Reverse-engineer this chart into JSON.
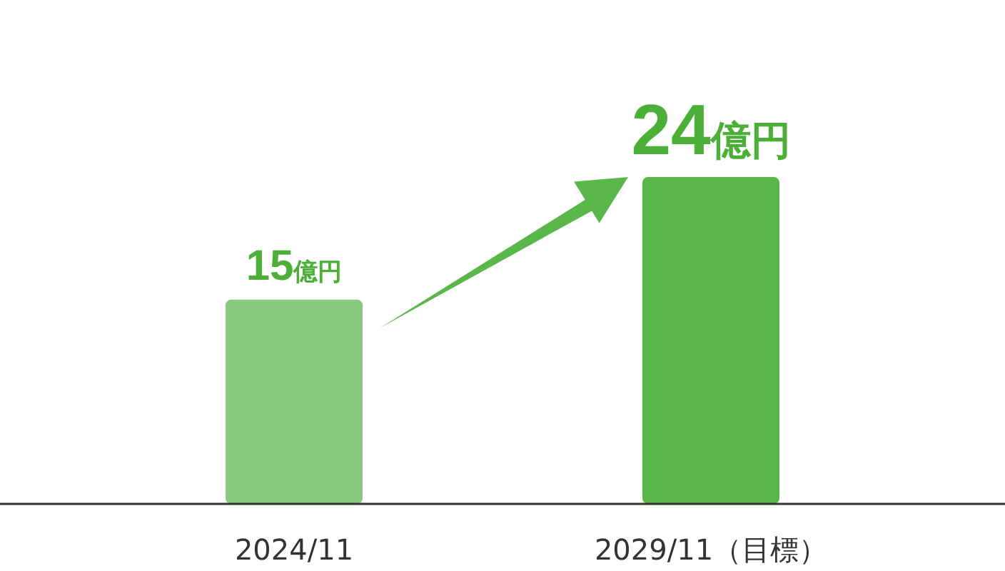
{
  "chart_data": {
    "type": "bar",
    "categories": [
      "2024/11",
      "2029/11（目標）"
    ],
    "values": [
      15,
      24
    ],
    "colors": [
      "#8cc980",
      "#5ab84a"
    ],
    "value_labels": [
      "15億円",
      "24億円"
    ]
  }
}
